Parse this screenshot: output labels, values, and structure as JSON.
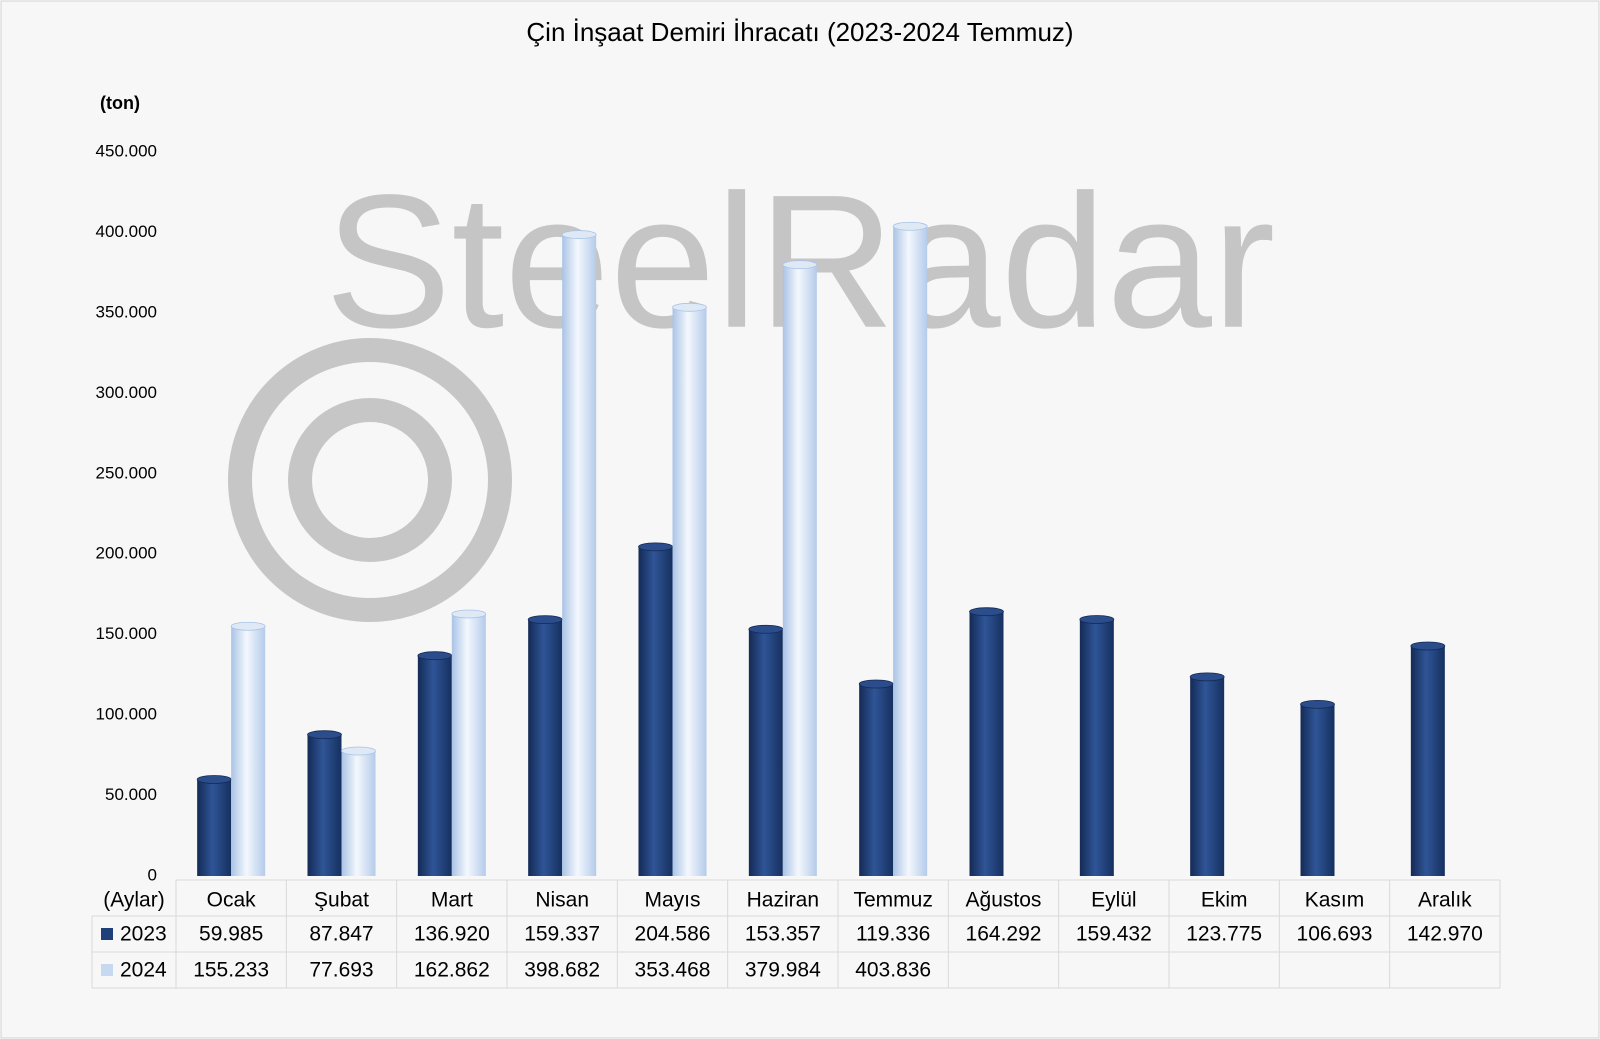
{
  "chart_data": {
    "type": "bar",
    "title": "Çin İnşaat Demiri İhracatı (2023-2024 Temmuz)",
    "y_label": "(ton)",
    "x_label": "(Aylar)",
    "watermark": "SteelRadar",
    "categories": [
      "Ocak",
      "Şubat",
      "Mart",
      "Nisan",
      "Mayıs",
      "Haziran",
      "Temmuz",
      "Ağustos",
      "Eylül",
      "Ekim",
      "Kasım",
      "Aralık"
    ],
    "series": [
      {
        "name": "2023",
        "color": "#1f3f7a",
        "values": [
          59985,
          87847,
          136920,
          159337,
          204586,
          153357,
          119336,
          164292,
          159432,
          123775,
          106693,
          142970
        ],
        "value_labels": [
          "59.985",
          "87.847",
          "136.920",
          "159.337",
          "204.586",
          "153.357",
          "119.336",
          "164.292",
          "159.432",
          "123.775",
          "106.693",
          "142.970"
        ]
      },
      {
        "name": "2024",
        "color": "#c6d9f0",
        "values": [
          155233,
          77693,
          162862,
          398682,
          353468,
          379984,
          403836,
          null,
          null,
          null,
          null,
          null
        ],
        "value_labels": [
          "155.233",
          "77.693",
          "162.862",
          "398.682",
          "353.468",
          "379.984",
          "403.836",
          null,
          null,
          null,
          null,
          null
        ]
      }
    ],
    "ylim": [
      0,
      450000
    ],
    "yticks": [
      0,
      {
        "value": 50000,
        "label": "50.000"
      },
      {
        "value": 100000,
        "label": "100.000"
      },
      {
        "value": 150000,
        "label": "150.000"
      },
      {
        "value": 200000,
        "label": "200.000"
      },
      {
        "value": 250000,
        "label": "250.000"
      },
      {
        "value": 300000,
        "label": "300.000"
      },
      {
        "value": 350000,
        "label": "350.000"
      },
      {
        "value": 400000,
        "label": "400.000"
      },
      {
        "value": 450000,
        "label": "450.000"
      }
    ],
    "grid": false
  }
}
